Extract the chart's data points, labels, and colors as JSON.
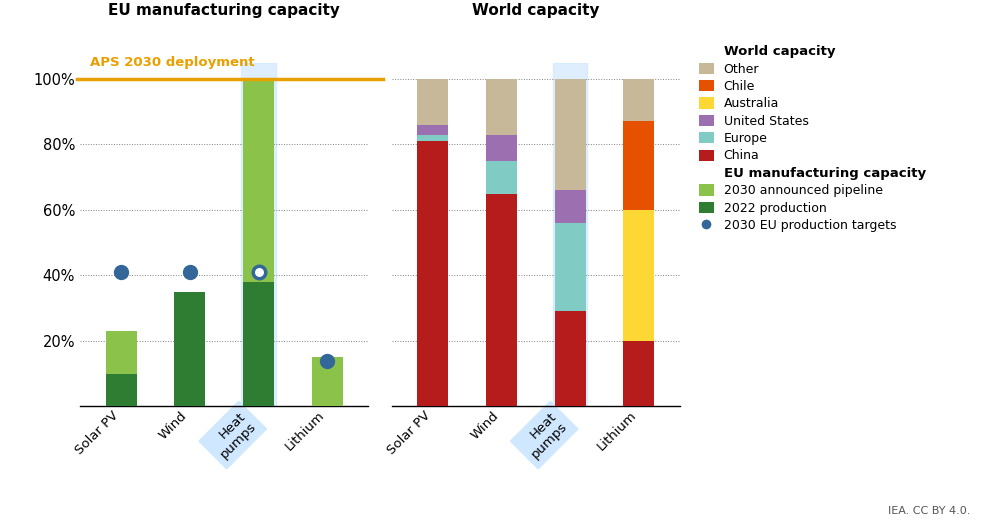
{
  "title_eu": "EU manufacturing capacity",
  "title_world": "World capacity",
  "aps_label": "APS 2030 deployment",
  "aps_color": "#E8A000",
  "categories_eu": [
    "Solar PV",
    "Wind",
    "Heat\npumps",
    "Lithium"
  ],
  "categories_world": [
    "Solar PV",
    "Wind",
    "Heat\npumps",
    "Lithium"
  ],
  "eu_2022_production": [
    10,
    35,
    38,
    0
  ],
  "eu_2030_pipeline": [
    13,
    0,
    62,
    15
  ],
  "eu_2030_targets": [
    41,
    41,
    41,
    14
  ],
  "world_china": [
    81,
    65,
    29,
    20
  ],
  "world_europe": [
    2,
    10,
    27,
    0
  ],
  "world_us": [
    3,
    8,
    10,
    0
  ],
  "world_australia": [
    0,
    0,
    0,
    40
  ],
  "world_chile": [
    0,
    0,
    0,
    27
  ],
  "world_other": [
    14,
    17,
    34,
    13
  ],
  "color_2022": "#2e7d32",
  "color_pipeline": "#8bc34a",
  "color_target": "#336699",
  "color_china": "#b71c1c",
  "color_europe": "#80cbc4",
  "color_us": "#9c70b0",
  "color_australia": "#fdd835",
  "color_chile": "#e65100",
  "color_other": "#c8b89a",
  "ylim": [
    0,
    105
  ],
  "yticks": [
    0,
    20,
    40,
    60,
    80,
    100
  ],
  "yticklabels": [
    "",
    "20%",
    "40%",
    "60%",
    "80%",
    "100%"
  ],
  "iea_credit": "IEA. CC BY 4.0.",
  "heat_pumps_highlight_color": "#d0e8ff"
}
